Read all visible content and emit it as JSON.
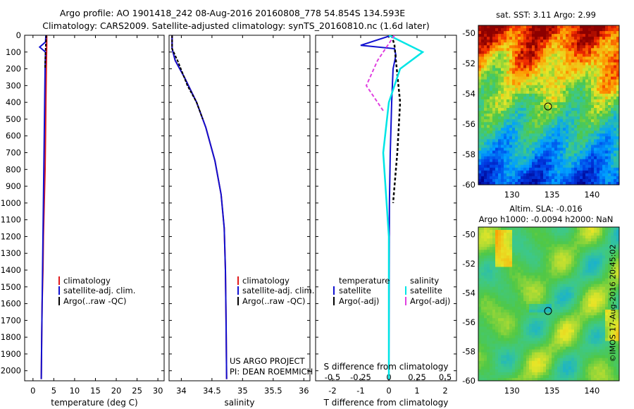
{
  "header": {
    "line1": "Argo profile: AO 1901418_242 08-Aug-2016 20160808_778 54.854S 134.593E",
    "line2": "Climatology: CARS2009. Satellite-adjusted climatology: synTS_20160810.nc (1.6d later)"
  },
  "stamp": "©IMOS 17-Aug-2016 20:45:02",
  "project_note": [
    "US ARGO PROJECT",
    "PI: DEAN ROEMMICH"
  ],
  "colors": {
    "climatology": "#e0191b",
    "satellite": "#1010d0",
    "argo": "#000000",
    "sal_satellite": "#00e5e5",
    "sal_argo": "#e040e0"
  },
  "chart_data": [
    {
      "type": "line",
      "xlabel": "temperature (deg C)",
      "ylabel": "",
      "xlim": [
        -2,
        31.5
      ],
      "ylim": [
        2060,
        0
      ],
      "xticks": [
        "0",
        "5",
        "10",
        "15",
        "20",
        "25",
        "30"
      ],
      "yticks": [
        "0",
        "100",
        "200",
        "300",
        "400",
        "500",
        "600",
        "700",
        "800",
        "900",
        "1000",
        "1100",
        "1200",
        "1300",
        "1400",
        "1500",
        "1600",
        "1700",
        "1800",
        "1900",
        "2000"
      ],
      "legend": [
        "climatology",
        "satellite-adj. clim.",
        "Argo(..raw -QC)"
      ],
      "series": [
        {
          "name": "climatology",
          "x": [
            3.3,
            3.3,
            3.2,
            3.1,
            3.0,
            2.9,
            2.7,
            2.5,
            2.4,
            2.2,
            2.1,
            2.0
          ],
          "y": [
            0,
            60,
            200,
            400,
            600,
            800,
            1000,
            1200,
            1400,
            1600,
            1800,
            2050
          ]
        },
        {
          "name": "satellite-adj. clim.",
          "x": [
            3.1,
            3.0,
            1.6,
            3.0,
            2.9,
            2.8,
            2.7,
            2.5,
            2.4,
            2.2,
            2.1,
            2.0
          ],
          "y": [
            0,
            40,
            70,
            100,
            200,
            400,
            600,
            1000,
            1200,
            1600,
            1800,
            2050
          ]
        },
        {
          "name": "Argo(..raw -QC)",
          "x": [
            3.2,
            3.1,
            3.0,
            2.9
          ],
          "y": [
            0,
            50,
            100,
            200
          ]
        }
      ]
    },
    {
      "type": "line",
      "xlabel": "salinity",
      "ylabel": "",
      "xlim": [
        33.8,
        36.1
      ],
      "ylim": [
        2060,
        0
      ],
      "xticks": [
        "34",
        "34.5",
        "35",
        "35.5",
        "36"
      ],
      "legend": [
        "climatology",
        "satellite-adj. clim.",
        "Argo(..raw -QC)"
      ],
      "series": [
        {
          "name": "climatology",
          "x": [
            33.85,
            33.85,
            33.9,
            34.05,
            34.25,
            34.4,
            34.55,
            34.65,
            34.7,
            34.72,
            34.73,
            34.74
          ],
          "y": [
            0,
            80,
            150,
            250,
            400,
            550,
            750,
            950,
            1150,
            1400,
            1700,
            2050
          ]
        },
        {
          "name": "satellite-adj. clim.",
          "x": [
            33.85,
            33.85,
            33.9,
            34.05,
            34.25,
            34.4,
            34.55,
            34.65,
            34.7,
            34.72,
            34.73,
            34.74
          ],
          "y": [
            0,
            80,
            150,
            250,
            400,
            550,
            750,
            950,
            1150,
            1400,
            1700,
            2050
          ]
        },
        {
          "name": "Argo(..raw -QC)",
          "x": [
            33.85,
            33.85,
            33.95,
            34.1,
            34.25,
            34.35
          ],
          "y": [
            0,
            80,
            160,
            300,
            400,
            500
          ]
        }
      ]
    },
    {
      "type": "line",
      "xlabel": "T difference from climatology",
      "title_top": "S difference from climatology",
      "xlim": [
        -2.6,
        2.4
      ],
      "ylim": [
        2060,
        0
      ],
      "xticks": [
        "-2",
        "-1",
        "0",
        "1",
        "2"
      ],
      "xticks_top": [
        "-0.5",
        "-0.25",
        "0",
        "0.25",
        "0.5"
      ],
      "legend_left_title": "temperature",
      "legend_right_title": "salinity",
      "legend": [
        "satellite",
        "Argo(-adj)",
        "satellite",
        "Argo(-adj)"
      ],
      "series": [
        {
          "name": "satellite",
          "x": [
            0.1,
            -1.0,
            0.2,
            0.25,
            0.15,
            0.1,
            0.05,
            0.02,
            0.0
          ],
          "y": [
            0,
            60,
            80,
            120,
            200,
            400,
            700,
            1000,
            2050
          ]
        },
        {
          "name": "Argo(-adj)",
          "x": [
            0.1,
            0.2,
            0.25,
            0.4,
            0.3,
            0.15
          ],
          "y": [
            0,
            60,
            150,
            400,
            700,
            1000
          ]
        },
        {
          "name": "satellite",
          "x": [
            0.0,
            0.3,
            0.1,
            0.0,
            -0.05,
            0.0,
            0.0
          ],
          "y": [
            0,
            100,
            200,
            400,
            700,
            1200,
            2050
          ]
        },
        {
          "name": "Argo(-adj)",
          "x": [
            0.05,
            -0.1,
            -0.2,
            -0.05
          ],
          "y": [
            0,
            150,
            300,
            450
          ]
        }
      ]
    }
  ],
  "sst_map": {
    "title": "sat. SST: 3.11  Argo: 2.99",
    "xticks": [
      "130",
      "135",
      "140"
    ],
    "yticks": [
      "-50",
      "-52",
      "-54",
      "-56",
      "-58",
      "-60"
    ]
  },
  "sla_map": {
    "title1": "Altim. SLA: -0.016",
    "title2": "Argo h1000: -0.0094 h2000: NaN",
    "xticks": [
      "130",
      "135",
      "140"
    ],
    "yticks": [
      "-50",
      "-52",
      "-54",
      "-56",
      "-58",
      "-60"
    ]
  }
}
